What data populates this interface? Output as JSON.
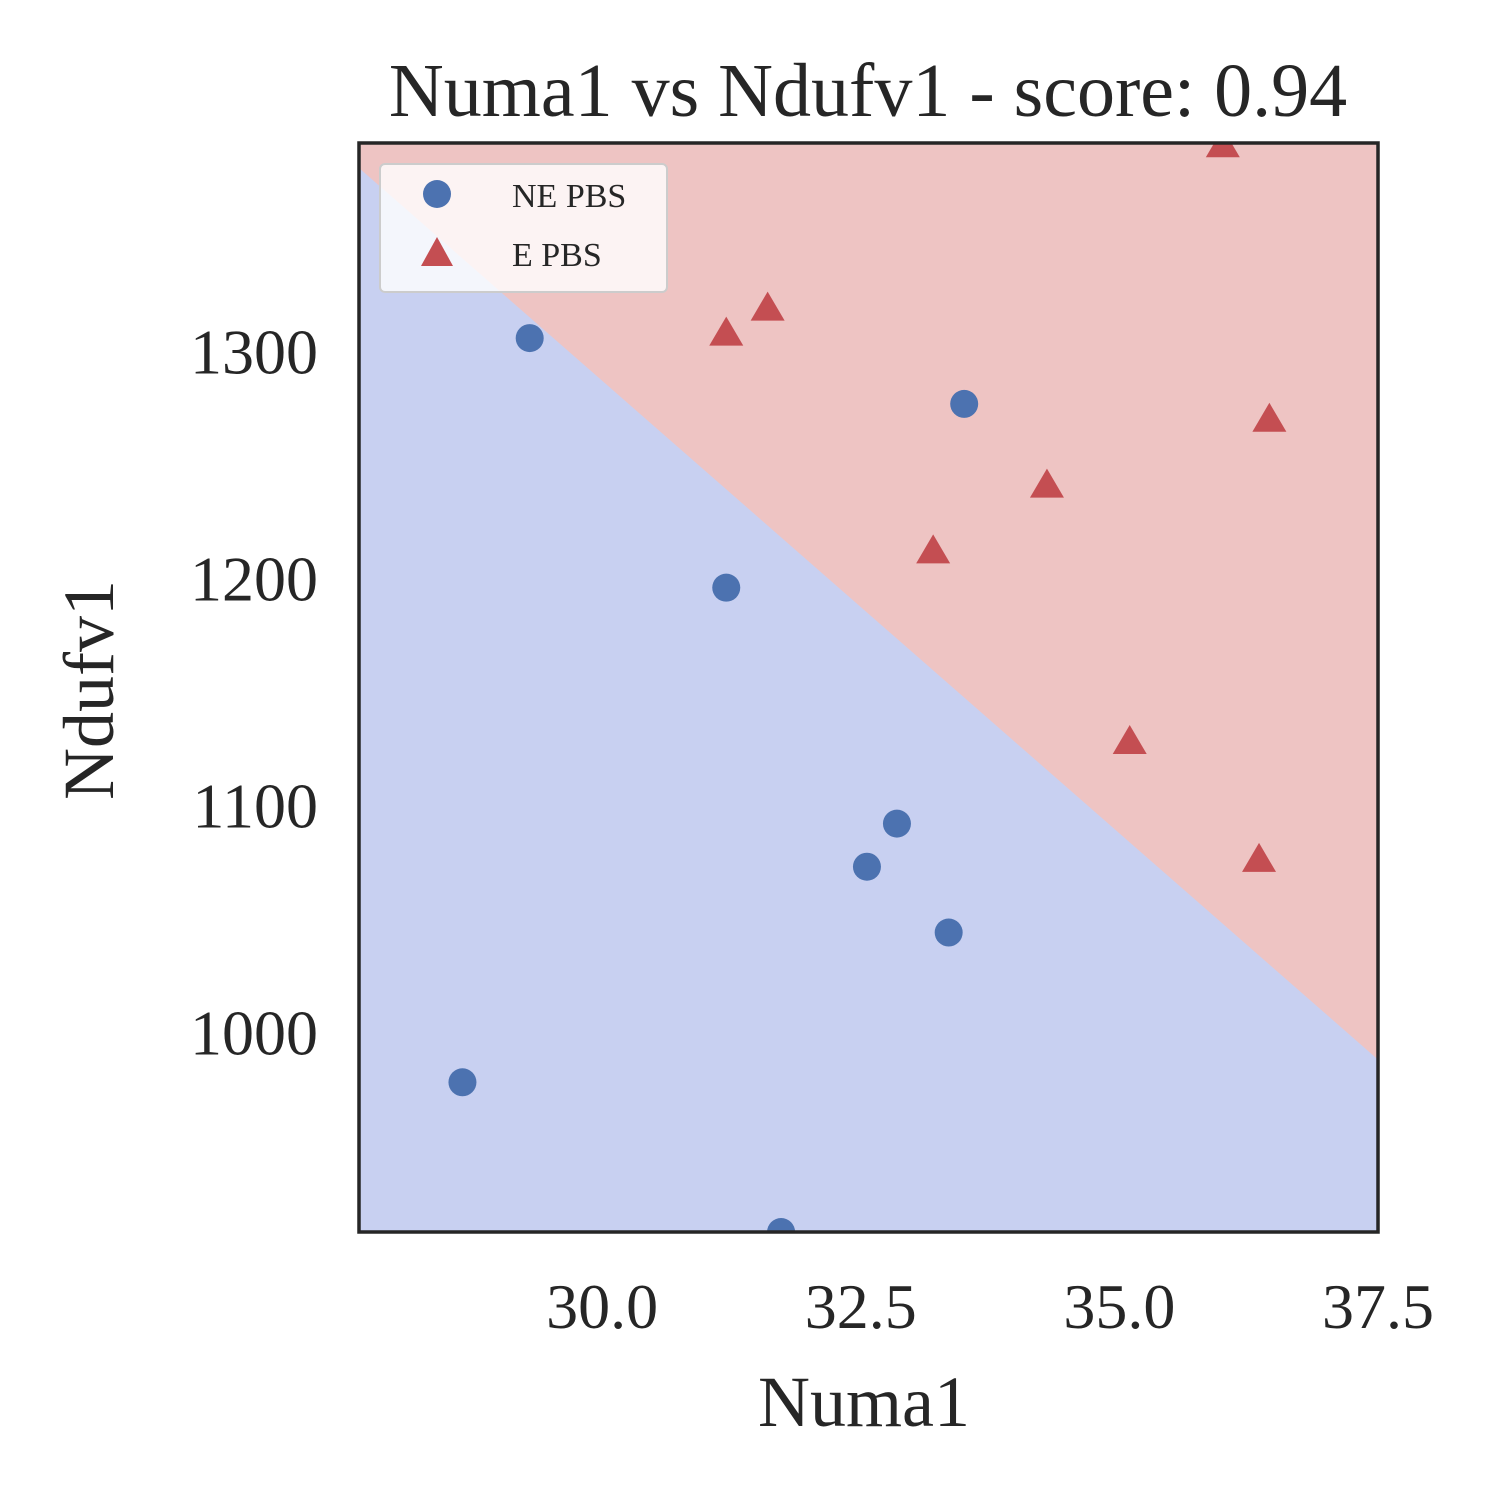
{
  "chart_data": {
    "type": "scatter",
    "title": "Numa1 vs Ndufv1 - score: 0.94",
    "xlabel": "Numa1",
    "ylabel": "Ndufv1",
    "xlim": [
      27.65,
      37.5
    ],
    "ylim": [
      912,
      1392
    ],
    "xticks": [
      {
        "value": 30.0,
        "label": "30.0"
      },
      {
        "value": 32.5,
        "label": "32.5"
      },
      {
        "value": 35.0,
        "label": "35.0"
      },
      {
        "value": 37.5,
        "label": "37.5"
      }
    ],
    "yticks": [
      {
        "value": 1000,
        "label": "1000"
      },
      {
        "value": 1100,
        "label": "1100"
      },
      {
        "value": 1200,
        "label": "1200"
      },
      {
        "value": 1300,
        "label": "1300"
      }
    ],
    "grid": false,
    "legend_position": "top-left",
    "decision_boundary": {
      "points": [
        [
          27.65,
          1381
        ],
        [
          37.5,
          988
        ]
      ],
      "below_region_color": "#c8d0f1",
      "above_region_color": "#eec4c3"
    },
    "series": [
      {
        "name": "NE PBS",
        "marker": "circle",
        "color": "#4c72b0",
        "points": [
          {
            "x": 28.65,
            "y": 978
          },
          {
            "x": 29.3,
            "y": 1306
          },
          {
            "x": 31.2,
            "y": 1196
          },
          {
            "x": 31.73,
            "y": 912
          },
          {
            "x": 32.56,
            "y": 1073
          },
          {
            "x": 32.85,
            "y": 1092
          },
          {
            "x": 33.35,
            "y": 1044
          },
          {
            "x": 33.5,
            "y": 1277
          }
        ]
      },
      {
        "name": "E PBS",
        "marker": "triangle",
        "color": "#c44e52",
        "points": [
          {
            "x": 31.2,
            "y": 1308
          },
          {
            "x": 31.6,
            "y": 1319
          },
          {
            "x": 33.2,
            "y": 1212
          },
          {
            "x": 34.3,
            "y": 1241
          },
          {
            "x": 35.1,
            "y": 1128
          },
          {
            "x": 36.0,
            "y": 1391
          },
          {
            "x": 36.35,
            "y": 1076
          },
          {
            "x": 36.45,
            "y": 1270
          }
        ]
      }
    ]
  }
}
